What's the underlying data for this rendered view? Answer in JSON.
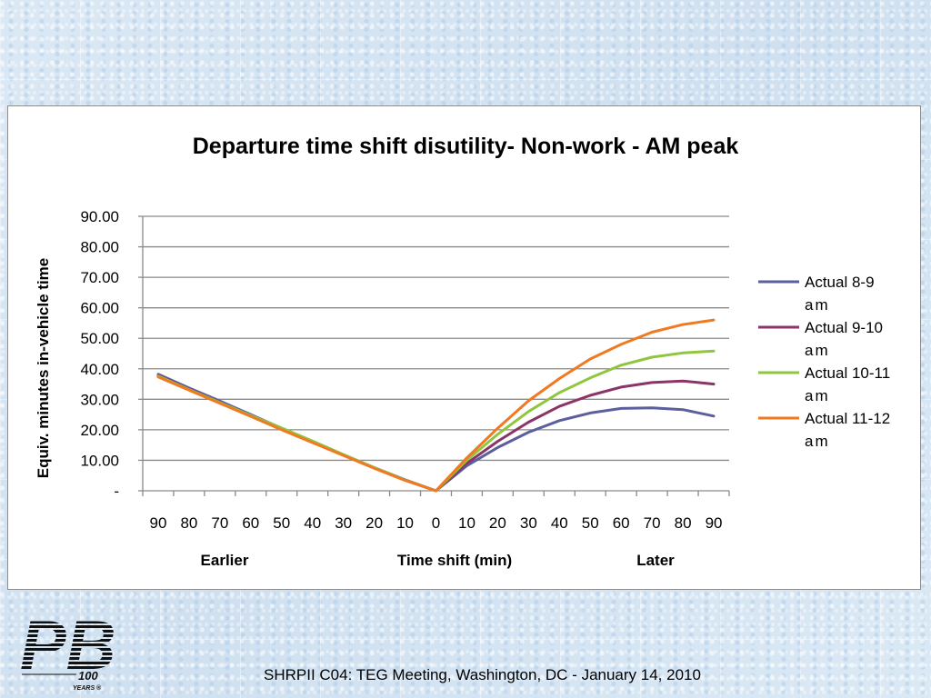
{
  "footer": {
    "text": "SHRPII C04: TEG Meeting, Washington, DC - January 14, 2010"
  },
  "logo": {
    "text": "PB",
    "sub": "100",
    "sub2": "YEARS ®"
  },
  "colors": {
    "background": "#d7e6f3",
    "chart_bg": "#ffffff"
  },
  "chart_data": {
    "type": "line",
    "title": "Departure time shift disutility- Non-work - AM peak",
    "xlabel": "Time shift (min)",
    "xlabel_left": "Earlier",
    "xlabel_right": "Later",
    "ylabel": "Equiv. minutes in-vehicle time",
    "ylim": [
      0,
      90
    ],
    "yticks": [
      "-",
      "10.00",
      "20.00",
      "30.00",
      "40.00",
      "50.00",
      "60.00",
      "70.00",
      "80.00",
      "90.00"
    ],
    "categories": [
      "90",
      "80",
      "70",
      "60",
      "50",
      "40",
      "30",
      "20",
      "10",
      "0",
      "10",
      "20",
      "30",
      "40",
      "50",
      "60",
      "70",
      "80",
      "90"
    ],
    "grid": true,
    "legend_position": "right",
    "series": [
      {
        "name": "Actual 8-9 am",
        "color": "#5b5f9e",
        "values": [
          38.2,
          33.7,
          29.4,
          25.0,
          20.5,
          16.2,
          11.8,
          7.6,
          3.6,
          0,
          8.2,
          14.2,
          19.2,
          23.0,
          25.5,
          27.0,
          27.2,
          26.6,
          24.5
        ]
      },
      {
        "name": "Actual 9-10 am",
        "color": "#8b3466",
        "values": [
          37.8,
          33.3,
          29.0,
          24.7,
          20.3,
          16.0,
          11.7,
          7.5,
          3.5,
          0,
          9.0,
          16.2,
          22.5,
          27.7,
          31.3,
          34.0,
          35.5,
          36.0,
          35.0
        ]
      },
      {
        "name": "Actual 10-11 am",
        "color": "#8fc63d",
        "values": [
          37.6,
          33.2,
          28.9,
          24.7,
          20.6,
          16.3,
          11.9,
          7.6,
          3.5,
          0,
          10.0,
          18.5,
          26.0,
          32.2,
          37.0,
          41.2,
          43.8,
          45.2,
          45.8
        ]
      },
      {
        "name": "Actual 11-12 am",
        "color": "#f07a22",
        "values": [
          37.3,
          33.0,
          28.7,
          24.4,
          20.0,
          15.8,
          11.6,
          7.4,
          3.4,
          0,
          10.8,
          20.5,
          29.5,
          36.8,
          43.2,
          48.0,
          52.0,
          54.5,
          56.0
        ]
      }
    ]
  }
}
